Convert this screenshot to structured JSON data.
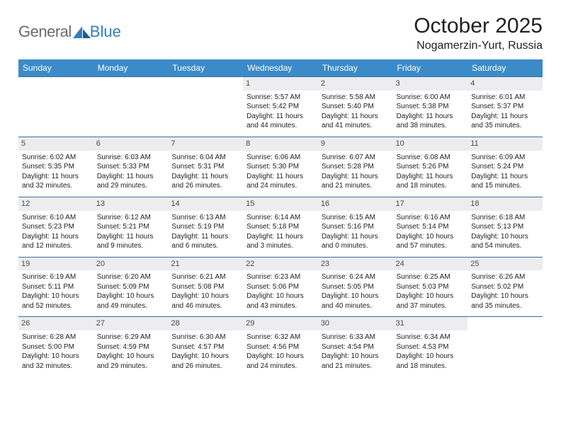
{
  "header": {
    "logo_general": "General",
    "logo_blue": "Blue",
    "month_title": "October 2025",
    "location": "Nogamerzin-Yurt, Russia"
  },
  "colors": {
    "header_bg": "#3b8bc9",
    "header_text": "#ffffff",
    "row_border": "#3b6fa0",
    "day_num_bg": "#ecedef",
    "day_num_text": "#4a4a4a",
    "logo_gray": "#6b6b6b",
    "logo_blue": "#2f7fc5"
  },
  "weekdays": [
    "Sunday",
    "Monday",
    "Tuesday",
    "Wednesday",
    "Thursday",
    "Friday",
    "Saturday"
  ],
  "weeks": [
    [
      {
        "empty": true
      },
      {
        "empty": true
      },
      {
        "empty": true
      },
      {
        "day": "1",
        "sunrise": "Sunrise: 5:57 AM",
        "sunset": "Sunset: 5:42 PM",
        "daylight1": "Daylight: 11 hours",
        "daylight2": "and 44 minutes."
      },
      {
        "day": "2",
        "sunrise": "Sunrise: 5:58 AM",
        "sunset": "Sunset: 5:40 PM",
        "daylight1": "Daylight: 11 hours",
        "daylight2": "and 41 minutes."
      },
      {
        "day": "3",
        "sunrise": "Sunrise: 6:00 AM",
        "sunset": "Sunset: 5:38 PM",
        "daylight1": "Daylight: 11 hours",
        "daylight2": "and 38 minutes."
      },
      {
        "day": "4",
        "sunrise": "Sunrise: 6:01 AM",
        "sunset": "Sunset: 5:37 PM",
        "daylight1": "Daylight: 11 hours",
        "daylight2": "and 35 minutes."
      }
    ],
    [
      {
        "day": "5",
        "sunrise": "Sunrise: 6:02 AM",
        "sunset": "Sunset: 5:35 PM",
        "daylight1": "Daylight: 11 hours",
        "daylight2": "and 32 minutes."
      },
      {
        "day": "6",
        "sunrise": "Sunrise: 6:03 AM",
        "sunset": "Sunset: 5:33 PM",
        "daylight1": "Daylight: 11 hours",
        "daylight2": "and 29 minutes."
      },
      {
        "day": "7",
        "sunrise": "Sunrise: 6:04 AM",
        "sunset": "Sunset: 5:31 PM",
        "daylight1": "Daylight: 11 hours",
        "daylight2": "and 26 minutes."
      },
      {
        "day": "8",
        "sunrise": "Sunrise: 6:06 AM",
        "sunset": "Sunset: 5:30 PM",
        "daylight1": "Daylight: 11 hours",
        "daylight2": "and 24 minutes."
      },
      {
        "day": "9",
        "sunrise": "Sunrise: 6:07 AM",
        "sunset": "Sunset: 5:28 PM",
        "daylight1": "Daylight: 11 hours",
        "daylight2": "and 21 minutes."
      },
      {
        "day": "10",
        "sunrise": "Sunrise: 6:08 AM",
        "sunset": "Sunset: 5:26 PM",
        "daylight1": "Daylight: 11 hours",
        "daylight2": "and 18 minutes."
      },
      {
        "day": "11",
        "sunrise": "Sunrise: 6:09 AM",
        "sunset": "Sunset: 5:24 PM",
        "daylight1": "Daylight: 11 hours",
        "daylight2": "and 15 minutes."
      }
    ],
    [
      {
        "day": "12",
        "sunrise": "Sunrise: 6:10 AM",
        "sunset": "Sunset: 5:23 PM",
        "daylight1": "Daylight: 11 hours",
        "daylight2": "and 12 minutes."
      },
      {
        "day": "13",
        "sunrise": "Sunrise: 6:12 AM",
        "sunset": "Sunset: 5:21 PM",
        "daylight1": "Daylight: 11 hours",
        "daylight2": "and 9 minutes."
      },
      {
        "day": "14",
        "sunrise": "Sunrise: 6:13 AM",
        "sunset": "Sunset: 5:19 PM",
        "daylight1": "Daylight: 11 hours",
        "daylight2": "and 6 minutes."
      },
      {
        "day": "15",
        "sunrise": "Sunrise: 6:14 AM",
        "sunset": "Sunset: 5:18 PM",
        "daylight1": "Daylight: 11 hours",
        "daylight2": "and 3 minutes."
      },
      {
        "day": "16",
        "sunrise": "Sunrise: 6:15 AM",
        "sunset": "Sunset: 5:16 PM",
        "daylight1": "Daylight: 11 hours",
        "daylight2": "and 0 minutes."
      },
      {
        "day": "17",
        "sunrise": "Sunrise: 6:16 AM",
        "sunset": "Sunset: 5:14 PM",
        "daylight1": "Daylight: 10 hours",
        "daylight2": "and 57 minutes."
      },
      {
        "day": "18",
        "sunrise": "Sunrise: 6:18 AM",
        "sunset": "Sunset: 5:13 PM",
        "daylight1": "Daylight: 10 hours",
        "daylight2": "and 54 minutes."
      }
    ],
    [
      {
        "day": "19",
        "sunrise": "Sunrise: 6:19 AM",
        "sunset": "Sunset: 5:11 PM",
        "daylight1": "Daylight: 10 hours",
        "daylight2": "and 52 minutes."
      },
      {
        "day": "20",
        "sunrise": "Sunrise: 6:20 AM",
        "sunset": "Sunset: 5:09 PM",
        "daylight1": "Daylight: 10 hours",
        "daylight2": "and 49 minutes."
      },
      {
        "day": "21",
        "sunrise": "Sunrise: 6:21 AM",
        "sunset": "Sunset: 5:08 PM",
        "daylight1": "Daylight: 10 hours",
        "daylight2": "and 46 minutes."
      },
      {
        "day": "22",
        "sunrise": "Sunrise: 6:23 AM",
        "sunset": "Sunset: 5:06 PM",
        "daylight1": "Daylight: 10 hours",
        "daylight2": "and 43 minutes."
      },
      {
        "day": "23",
        "sunrise": "Sunrise: 6:24 AM",
        "sunset": "Sunset: 5:05 PM",
        "daylight1": "Daylight: 10 hours",
        "daylight2": "and 40 minutes."
      },
      {
        "day": "24",
        "sunrise": "Sunrise: 6:25 AM",
        "sunset": "Sunset: 5:03 PM",
        "daylight1": "Daylight: 10 hours",
        "daylight2": "and 37 minutes."
      },
      {
        "day": "25",
        "sunrise": "Sunrise: 6:26 AM",
        "sunset": "Sunset: 5:02 PM",
        "daylight1": "Daylight: 10 hours",
        "daylight2": "and 35 minutes."
      }
    ],
    [
      {
        "day": "26",
        "sunrise": "Sunrise: 6:28 AM",
        "sunset": "Sunset: 5:00 PM",
        "daylight1": "Daylight: 10 hours",
        "daylight2": "and 32 minutes."
      },
      {
        "day": "27",
        "sunrise": "Sunrise: 6:29 AM",
        "sunset": "Sunset: 4:59 PM",
        "daylight1": "Daylight: 10 hours",
        "daylight2": "and 29 minutes."
      },
      {
        "day": "28",
        "sunrise": "Sunrise: 6:30 AM",
        "sunset": "Sunset: 4:57 PM",
        "daylight1": "Daylight: 10 hours",
        "daylight2": "and 26 minutes."
      },
      {
        "day": "29",
        "sunrise": "Sunrise: 6:32 AM",
        "sunset": "Sunset: 4:56 PM",
        "daylight1": "Daylight: 10 hours",
        "daylight2": "and 24 minutes."
      },
      {
        "day": "30",
        "sunrise": "Sunrise: 6:33 AM",
        "sunset": "Sunset: 4:54 PM",
        "daylight1": "Daylight: 10 hours",
        "daylight2": "and 21 minutes."
      },
      {
        "day": "31",
        "sunrise": "Sunrise: 6:34 AM",
        "sunset": "Sunset: 4:53 PM",
        "daylight1": "Daylight: 10 hours",
        "daylight2": "and 18 minutes."
      },
      {
        "empty": true
      }
    ]
  ]
}
